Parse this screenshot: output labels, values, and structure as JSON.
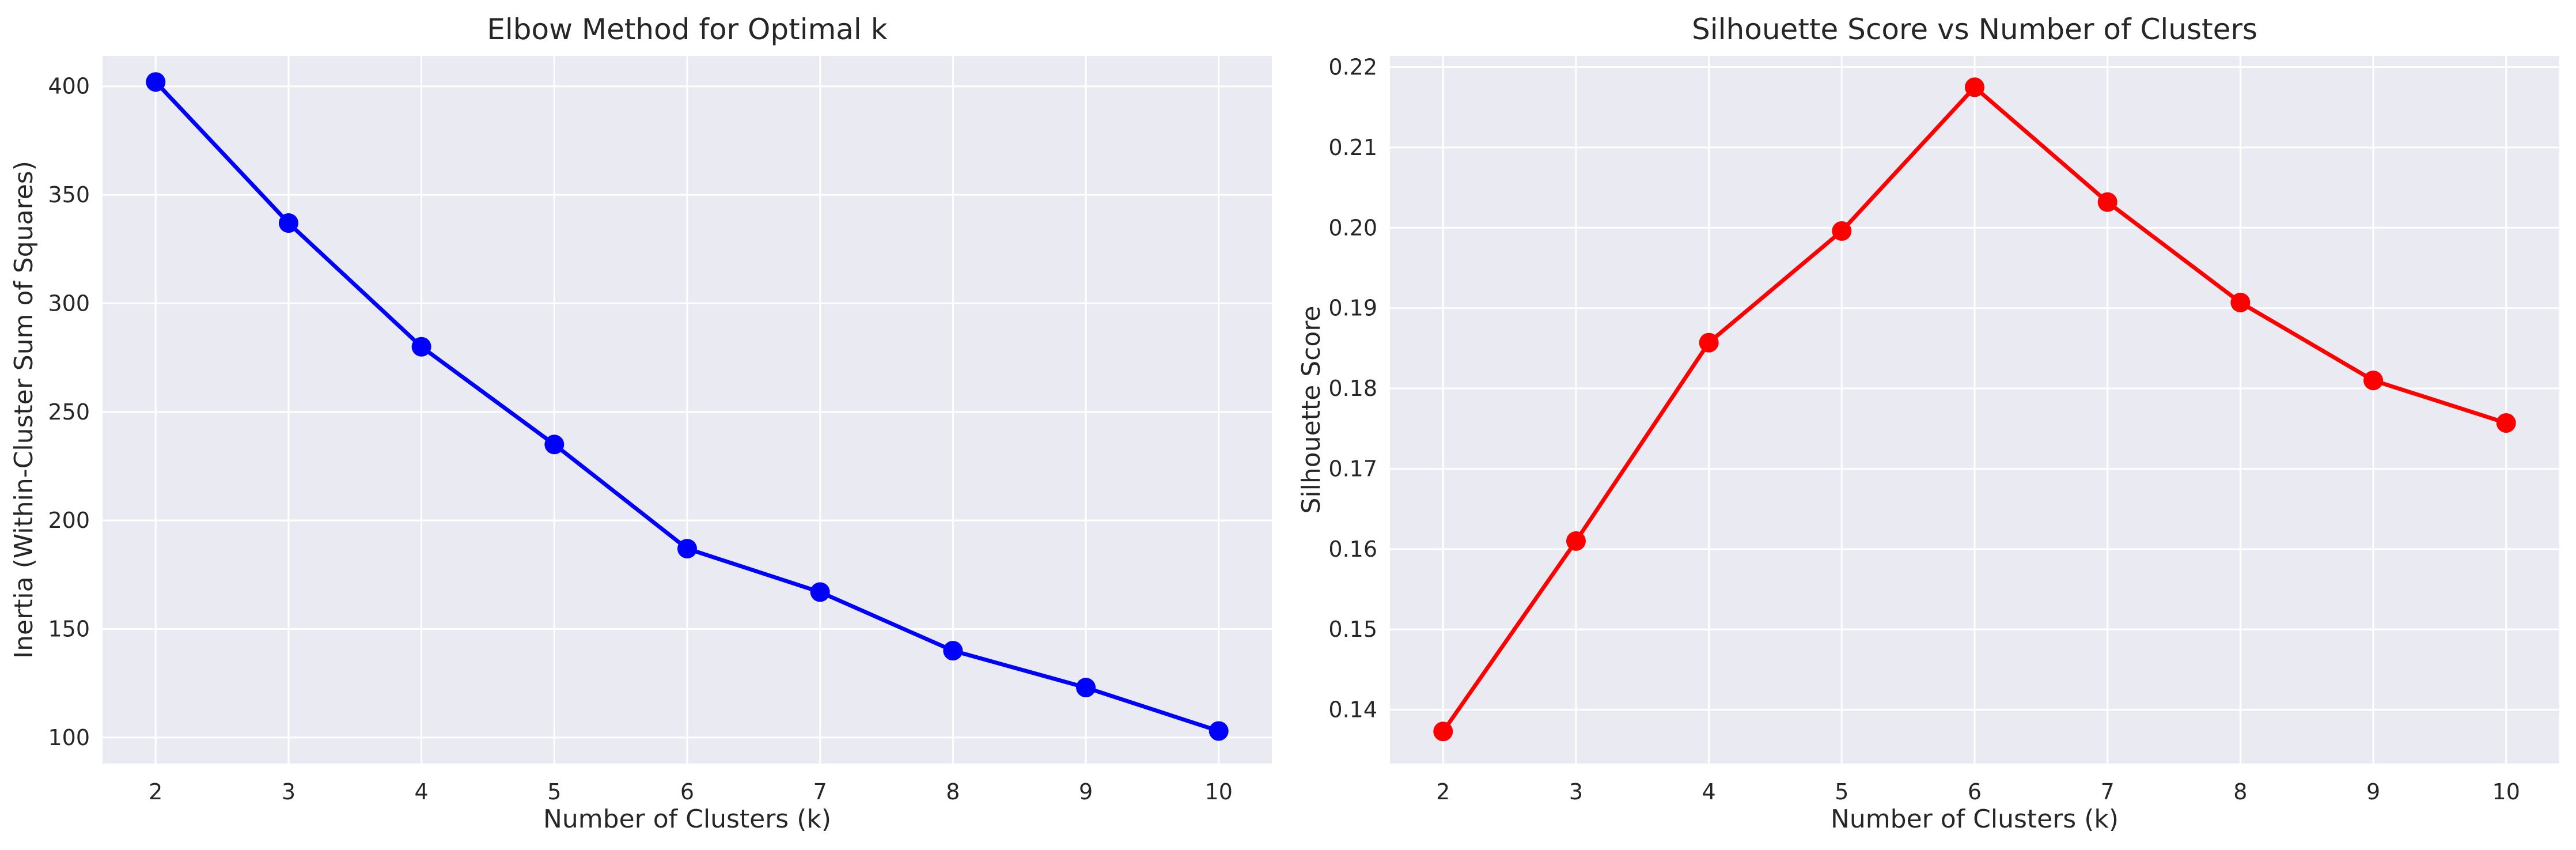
{
  "chart_data": [
    {
      "type": "line",
      "title": "Elbow Method for Optimal k",
      "xlabel": "Number of Clusters (k)",
      "ylabel": "Inertia (Within-Cluster Sum of Squares)",
      "x": [
        2,
        3,
        4,
        5,
        6,
        7,
        8,
        9,
        10
      ],
      "xticks": [
        2,
        3,
        4,
        5,
        6,
        7,
        8,
        9,
        10
      ],
      "xlim": [
        1.6,
        10.4
      ],
      "yticks": [
        100,
        150,
        200,
        250,
        300,
        350,
        400
      ],
      "ylim": [
        88,
        414
      ],
      "grid": true,
      "series": [
        {
          "color": "#0000ff",
          "values": [
            402,
            337,
            280,
            235,
            187,
            167,
            140,
            123,
            103
          ]
        }
      ]
    },
    {
      "type": "line",
      "title": "Silhouette Score vs Number of Clusters",
      "xlabel": "Number of Clusters (k)",
      "ylabel": "Silhouette Score",
      "x": [
        2,
        3,
        4,
        5,
        6,
        7,
        8,
        9,
        10
      ],
      "xticks": [
        2,
        3,
        4,
        5,
        6,
        7,
        8,
        9,
        10
      ],
      "xlim": [
        1.6,
        10.4
      ],
      "yticks": [
        "0.14",
        "0.15",
        "0.16",
        "0.17",
        "0.18",
        "0.19",
        "0.20",
        "0.21",
        "0.22"
      ],
      "ylim": [
        0.1333,
        0.2214
      ],
      "grid": true,
      "series": [
        {
          "color": "#ff0000",
          "values": [
            0.1373,
            0.161,
            0.1857,
            0.1996,
            0.2175,
            0.2032,
            0.1907,
            0.181,
            0.1757
          ]
        }
      ]
    }
  ]
}
